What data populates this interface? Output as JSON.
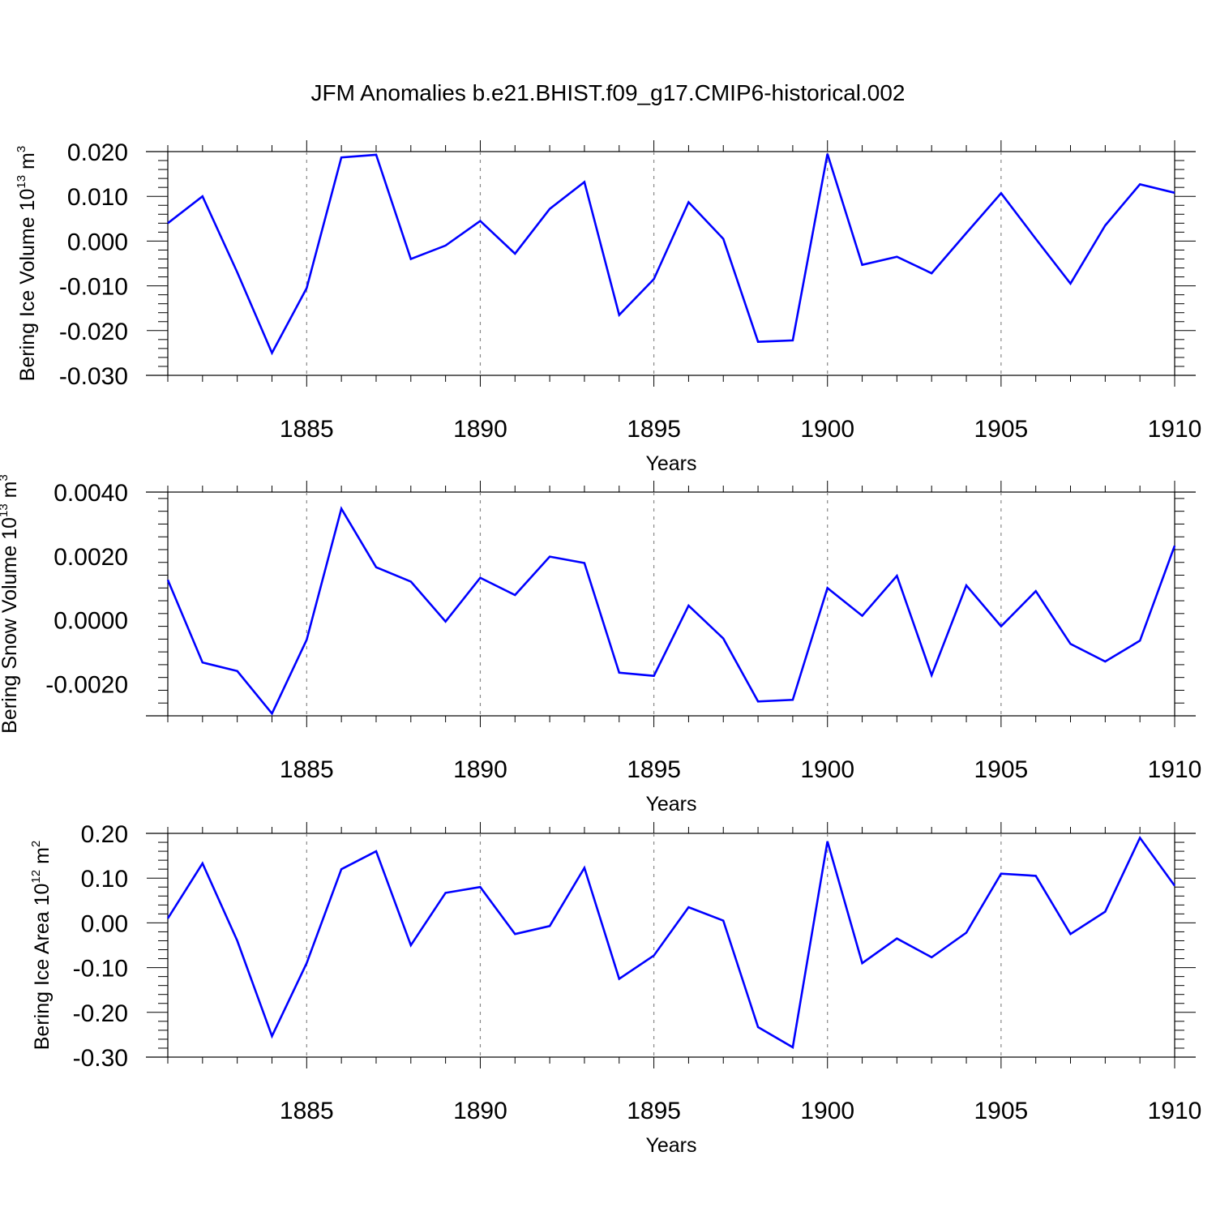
{
  "figure_title": "JFM Anomalies b.e21.BHIST.f09_g17.CMIP6-historical.002",
  "line_color": "#0000ff",
  "chart_data": [
    {
      "type": "line",
      "ylabel_main": "Bering Ice Volume 10",
      "ylabel_exp": "13",
      "ylabel_unit": " m",
      "ylabel_unit_exp": "3",
      "xlabel": "Years",
      "xlim": [
        1881,
        1910
      ],
      "ylim": [
        -0.03,
        0.02
      ],
      "yticks": [
        -0.03,
        -0.02,
        -0.01,
        0.0,
        0.01,
        0.02
      ],
      "ytick_labels": [
        "-0.030",
        "-0.020",
        "-0.010",
        "0.000",
        "0.010",
        "0.020"
      ],
      "xticks": [
        1885,
        1890,
        1895,
        1900,
        1905,
        1910
      ],
      "xtick_labels": [
        "1885",
        "1890",
        "1895",
        "1900",
        "1905",
        "1910"
      ],
      "grid_x": true,
      "series": [
        {
          "name": "ice_volume",
          "x": [
            1881,
            1882,
            1883,
            1884,
            1885,
            1886,
            1887,
            1888,
            1889,
            1890,
            1891,
            1892,
            1893,
            1894,
            1895,
            1896,
            1897,
            1898,
            1899,
            1900,
            1901,
            1902,
            1903,
            1904,
            1905,
            1906,
            1907,
            1908,
            1909,
            1910
          ],
          "values": [
            0.004,
            0.01,
            -0.007,
            -0.025,
            -0.0105,
            0.0187,
            0.0193,
            -0.004,
            -0.001,
            0.0045,
            -0.0028,
            0.0072,
            0.0132,
            -0.0165,
            -0.0085,
            0.0087,
            0.0005,
            -0.0225,
            -0.0222,
            0.0195,
            -0.0053,
            -0.0035,
            -0.0072,
            0.0018,
            0.0107,
            0.0005,
            -0.0095,
            0.0035,
            0.0127,
            0.0108
          ]
        }
      ]
    },
    {
      "type": "line",
      "ylabel_main": "Bering Snow Volume 10",
      "ylabel_exp": "13",
      "ylabel_unit": " m",
      "ylabel_unit_exp": "3",
      "xlabel": "Years",
      "xlim": [
        1881,
        1910
      ],
      "ylim": [
        -0.003,
        0.004
      ],
      "yticks": [
        -0.002,
        0.0,
        0.002,
        0.004
      ],
      "ytick_labels": [
        "-0.0020",
        "0.0000",
        "0.0020",
        "0.0040"
      ],
      "xticks": [
        1885,
        1890,
        1895,
        1900,
        1905,
        1910
      ],
      "xtick_labels": [
        "1885",
        "1890",
        "1895",
        "1900",
        "1905",
        "1910"
      ],
      "grid_x": true,
      "series": [
        {
          "name": "snow_volume",
          "x": [
            1881,
            1882,
            1883,
            1884,
            1885,
            1886,
            1887,
            1888,
            1889,
            1890,
            1891,
            1892,
            1893,
            1894,
            1895,
            1896,
            1897,
            1898,
            1899,
            1900,
            1901,
            1902,
            1903,
            1904,
            1905,
            1906,
            1907,
            1908,
            1909,
            1910
          ],
          "values": [
            0.00125,
            -0.00133,
            -0.0016,
            -0.00293,
            -0.00062,
            0.00348,
            0.00165,
            0.0012,
            -5e-05,
            0.00132,
            0.00078,
            0.00198,
            0.00178,
            -0.00165,
            -0.00175,
            0.00045,
            -0.00058,
            -0.00255,
            -0.0025,
            0.001,
            0.00013,
            0.00138,
            -0.00173,
            0.00108,
            -0.0002,
            0.0009,
            -0.00075,
            -0.0013,
            -0.00065,
            0.00232
          ]
        }
      ]
    },
    {
      "type": "line",
      "ylabel_main": "Bering Ice Area 10",
      "ylabel_exp": "12",
      "ylabel_unit": " m",
      "ylabel_unit_exp": "2",
      "xlabel": "Years",
      "xlim": [
        1881,
        1910
      ],
      "ylim": [
        -0.3,
        0.2
      ],
      "yticks": [
        -0.3,
        -0.2,
        -0.1,
        0.0,
        0.1,
        0.2
      ],
      "ytick_labels": [
        "-0.30",
        "-0.20",
        "-0.10",
        "0.00",
        "0.10",
        "0.20"
      ],
      "xticks": [
        1885,
        1890,
        1895,
        1900,
        1905,
        1910
      ],
      "xtick_labels": [
        "1885",
        "1890",
        "1895",
        "1900",
        "1905",
        "1910"
      ],
      "grid_x": true,
      "series": [
        {
          "name": "ice_area",
          "x": [
            1881,
            1882,
            1883,
            1884,
            1885,
            1886,
            1887,
            1888,
            1889,
            1890,
            1891,
            1892,
            1893,
            1894,
            1895,
            1896,
            1897,
            1898,
            1899,
            1900,
            1901,
            1902,
            1903,
            1904,
            1905,
            1906,
            1907,
            1908,
            1909,
            1910
          ],
          "values": [
            0.01,
            0.133,
            -0.04,
            -0.253,
            -0.09,
            0.12,
            0.16,
            -0.05,
            0.067,
            0.08,
            -0.025,
            -0.007,
            0.123,
            -0.125,
            -0.073,
            0.035,
            0.005,
            -0.233,
            -0.278,
            0.182,
            -0.09,
            -0.035,
            -0.077,
            -0.022,
            0.11,
            0.105,
            -0.025,
            0.025,
            0.19,
            0.083
          ]
        }
      ]
    }
  ]
}
